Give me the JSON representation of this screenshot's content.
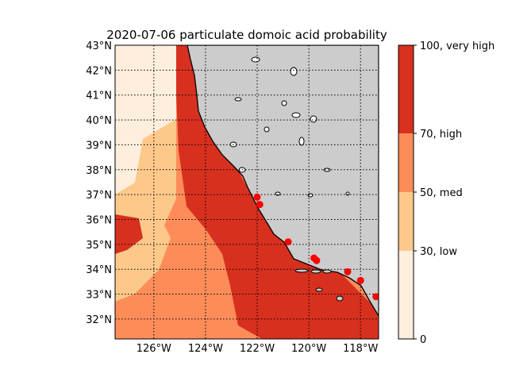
{
  "title": "2020-07-06 particulate domoic acid probability",
  "map": {
    "lon_range": [
      -127.5,
      -117.3
    ],
    "lat_range": [
      31.2,
      43.0
    ],
    "land_color": "#cccccc",
    "coast_color": "#000000",
    "grid": "dotted",
    "lon_ticks": [
      {
        "value": -126,
        "label": "126°W"
      },
      {
        "value": -124,
        "label": "124°W"
      },
      {
        "value": -122,
        "label": "122°W"
      },
      {
        "value": -120,
        "label": "120°W"
      },
      {
        "value": -118,
        "label": "118°W"
      }
    ],
    "lat_ticks": [
      {
        "value": 43,
        "label": "43°N"
      },
      {
        "value": 42,
        "label": "42°N"
      },
      {
        "value": 41,
        "label": "41°N"
      },
      {
        "value": 40,
        "label": "40°N"
      },
      {
        "value": 39,
        "label": "39°N"
      },
      {
        "value": 38,
        "label": "38°N"
      },
      {
        "value": 37,
        "label": "37°N"
      },
      {
        "value": 36,
        "label": "36°N"
      },
      {
        "value": 35,
        "label": "35°N"
      },
      {
        "value": 34,
        "label": "34°N"
      },
      {
        "value": 33,
        "label": "33°N"
      },
      {
        "value": 32,
        "label": "32°N"
      }
    ]
  },
  "colorbar": {
    "levels": [
      {
        "from": 0,
        "to": 30,
        "color": "#fdeedd"
      },
      {
        "from": 30,
        "to": 50,
        "color": "#fdc98a"
      },
      {
        "from": 50,
        "to": 70,
        "color": "#fc8d59"
      },
      {
        "from": 70,
        "to": 100,
        "color": "#d7301f"
      }
    ],
    "labels": [
      {
        "value": 0,
        "text": "0"
      },
      {
        "value": 30,
        "text": "30, low"
      },
      {
        "value": 50,
        "text": "50, med"
      },
      {
        "value": 70,
        "text": "70, high"
      },
      {
        "value": 100,
        "text": "100, very high"
      }
    ]
  },
  "stations": [
    {
      "lon": -122.0,
      "lat": 36.9
    },
    {
      "lon": -121.9,
      "lat": 36.6
    },
    {
      "lon": -120.8,
      "lat": 35.1
    },
    {
      "lon": -119.8,
      "lat": 34.45
    },
    {
      "lon": -119.7,
      "lat": 34.35
    },
    {
      "lon": -118.5,
      "lat": 33.9
    },
    {
      "lon": -118.0,
      "lat": 33.55
    },
    {
      "lon": -117.4,
      "lat": 32.9
    }
  ],
  "station_color": "#ff0000"
}
